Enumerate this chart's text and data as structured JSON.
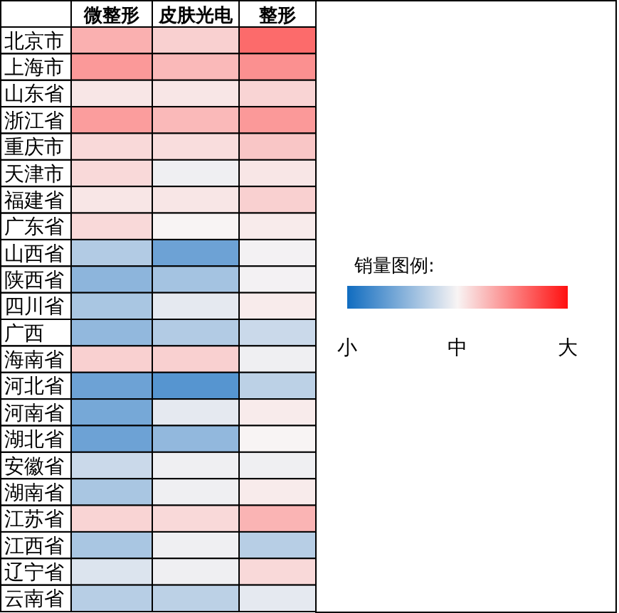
{
  "chart_data": {
    "type": "heatmap",
    "clabel": "销量图例:",
    "categories": [
      "微整形",
      "皮肤光电",
      "整形"
    ],
    "y_categories": [
      "北京市",
      "上海市",
      "山东省",
      "浙江省",
      "重庆市",
      "天津市",
      "福建省",
      "广东省",
      "山西省",
      "陕西省",
      "四川省",
      "广西",
      "海南省",
      "河北省",
      "河南省",
      "湖北省",
      "安徽省",
      "湖南省",
      "江苏省",
      "江西省",
      "辽宁省",
      "云南省"
    ],
    "cells": [
      [
        0.65,
        0.58,
        0.8
      ],
      [
        0.7,
        0.63,
        0.72
      ],
      [
        0.53,
        0.53,
        0.57
      ],
      [
        0.69,
        0.63,
        0.7
      ],
      [
        0.56,
        0.55,
        0.6
      ],
      [
        0.56,
        0.48,
        0.53
      ],
      [
        0.53,
        0.53,
        0.58
      ],
      [
        0.56,
        0.5,
        0.52
      ],
      [
        0.35,
        0.2,
        0.49
      ],
      [
        0.27,
        0.32,
        0.49
      ],
      [
        0.33,
        0.46,
        0.52
      ],
      [
        0.28,
        0.35,
        0.4
      ],
      [
        0.58,
        0.58,
        0.48
      ],
      [
        0.2,
        0.15,
        0.37
      ],
      [
        0.22,
        0.46,
        0.52
      ],
      [
        0.2,
        0.28,
        0.5
      ],
      [
        0.4,
        0.48,
        0.48
      ],
      [
        0.33,
        0.48,
        0.52
      ],
      [
        0.57,
        0.56,
        0.64
      ],
      [
        0.33,
        0.48,
        0.36
      ],
      [
        0.44,
        0.48,
        0.56
      ],
      [
        0.36,
        0.37,
        0.46
      ]
    ],
    "clim": [
      0,
      1
    ],
    "cticks": [
      {
        "value": 0,
        "label": "小"
      },
      {
        "value": 0.5,
        "label": "中"
      },
      {
        "value": 1,
        "label": "大"
      }
    ]
  }
}
